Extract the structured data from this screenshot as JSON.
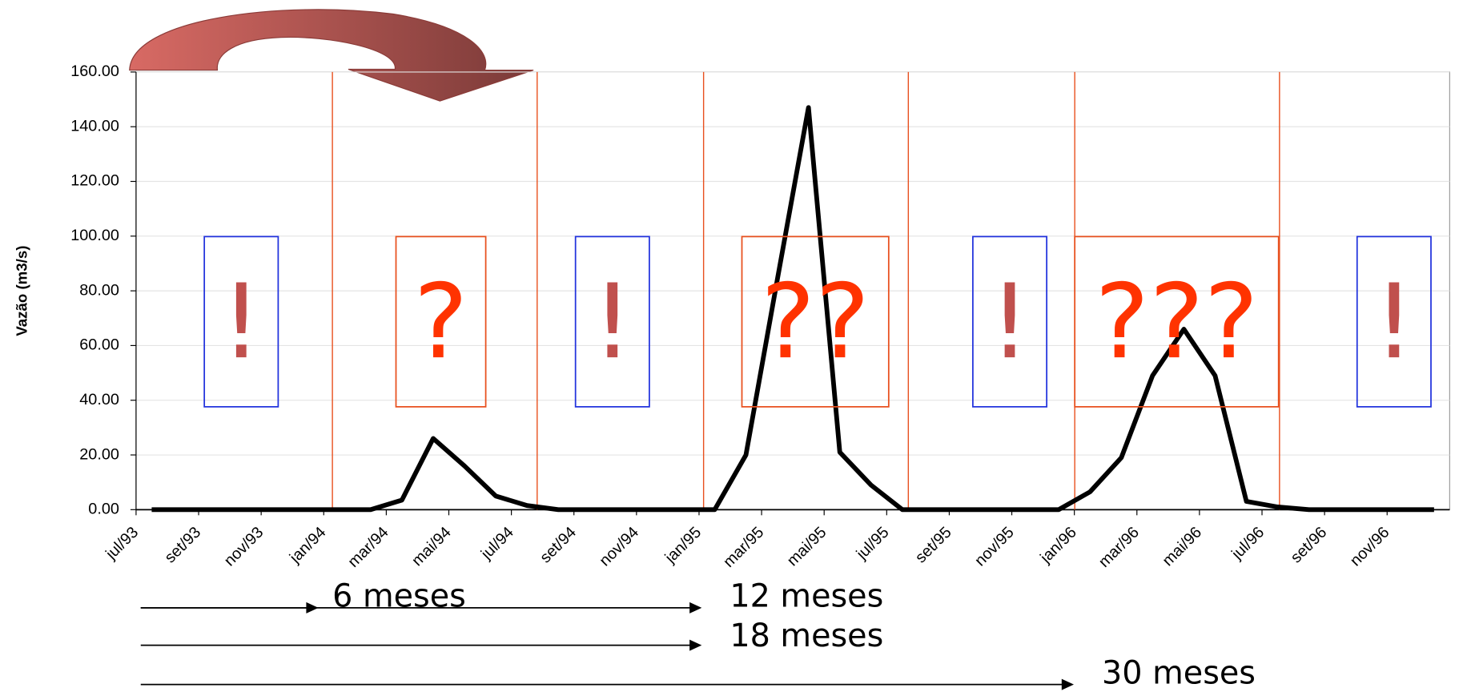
{
  "chart_data": {
    "type": "line",
    "y_label": "Vazão (m3/s)",
    "categories": [
      "jul/93",
      null,
      "set/93",
      null,
      "nov/93",
      null,
      "jan/94",
      null,
      "mar/94",
      null,
      "mai/94",
      null,
      "jul/94",
      null,
      "set/94",
      null,
      "nov/94",
      null,
      "jan/95",
      null,
      "mar/95",
      null,
      "mai/95",
      null,
      "jul/95",
      null,
      "set/95",
      null,
      "nov/95",
      null,
      "jan/96",
      null,
      "mar/96",
      null,
      "mai/96",
      null,
      "jul/96",
      null,
      "set/96",
      null,
      "nov/96",
      null
    ],
    "series": [
      {
        "color": "#000000",
        "values": [
          0,
          0,
          0,
          0,
          0,
          0,
          0,
          0,
          3.5,
          26,
          16,
          5,
          1.5,
          0,
          0,
          0,
          0,
          0,
          0,
          20,
          84,
          147,
          21,
          9,
          0,
          0,
          0,
          0,
          0,
          0,
          6.5,
          19,
          49,
          66,
          49,
          3,
          1,
          0,
          0,
          0,
          0,
          0
        ]
      }
    ],
    "ylim": [
      0,
      160
    ],
    "yticks": [
      {
        "value": 0,
        "label": "0.00"
      },
      {
        "value": 20,
        "label": "20.00"
      },
      {
        "value": 40,
        "label": "40.00"
      },
      {
        "value": 60,
        "label": "60.00"
      },
      {
        "value": 80,
        "label": "80.00"
      },
      {
        "value": 100,
        "label": "100.00"
      },
      {
        "value": 120,
        "label": "120.00"
      },
      {
        "value": 140,
        "label": "140.00"
      },
      {
        "value": 160,
        "label": "160.00"
      }
    ],
    "grid": true,
    "annotations": [
      "!",
      "?",
      "!",
      "??",
      "!",
      "???",
      "!"
    ],
    "periods": [
      "6 meses",
      "12 meses",
      "18 meses",
      "30 meses"
    ]
  }
}
